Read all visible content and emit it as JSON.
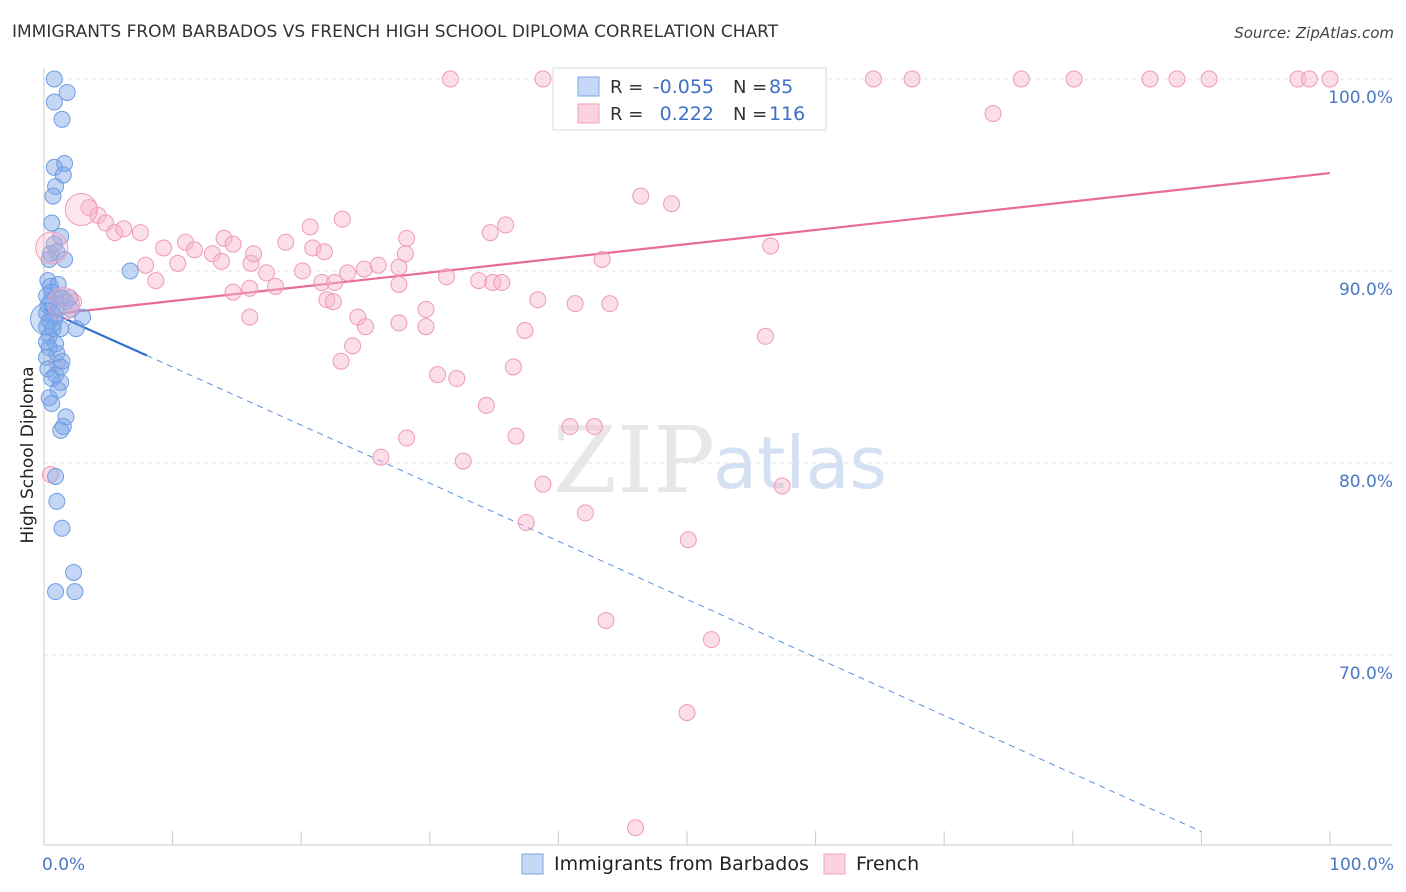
{
  "title": "IMMIGRANTS FROM BARBADOS VS FRENCH HIGH SCHOOL DIPLOMA CORRELATION CHART",
  "source": "Source: ZipAtlas.com",
  "watermark": {
    "zip": "ZIP",
    "atlas": "atlas"
  },
  "chart_data": {
    "type": "scatter",
    "title": "IMMIGRANTS FROM BARBADOS VS FRENCH HIGH SCHOOL DIPLOMA CORRELATION CHART",
    "xlabel": "",
    "ylabel": "High School Diploma",
    "xlim": [
      0,
      100
    ],
    "ylim": [
      60.5,
      101.5
    ],
    "x_tick_labels": [
      "0.0%",
      "100.0%"
    ],
    "y_ticks": [
      70,
      80,
      90,
      100
    ],
    "y_tick_labels": [
      "70.0%",
      "80.0%",
      "90.0%",
      "100.0%"
    ],
    "legend": [
      {
        "name": "Immigrants from Barbados",
        "color": "#7aa6e8",
        "R_label": "R = ",
        "R": "-0.055",
        "N_label": "N = ",
        "N": "85"
      },
      {
        "name": "French",
        "color": "#f4a0b8",
        "R_label": "R = ",
        "R": "0.222",
        "N_label": "N = ",
        "N": "116"
      }
    ],
    "series": [
      {
        "name": "Immigrants from Barbados",
        "color": "#7aa6e8",
        "stroke": "#6f9de4",
        "trend": {
          "x": [
            0,
            8.0
          ],
          "y": [
            88.0,
            85.6
          ],
          "color": "#2f6fd0"
        },
        "trend_ext": {
          "x": [
            8.0,
            90.0
          ],
          "y": [
            85.6,
            60.8
          ],
          "color": "#5b8fe0"
        },
        "points": [
          [
            0.8,
            100
          ],
          [
            1.8,
            99.3
          ],
          [
            0.8,
            98.8
          ],
          [
            1.4,
            97.9
          ],
          [
            1.6,
            95.6
          ],
          [
            0.8,
            95.4
          ],
          [
            1.5,
            95.0
          ],
          [
            0.9,
            94.4
          ],
          [
            0.7,
            93.9
          ],
          [
            0.6,
            92.5
          ],
          [
            1.3,
            91.8
          ],
          [
            0.8,
            91.4
          ],
          [
            1.0,
            91.0
          ],
          [
            0.5,
            90.9
          ],
          [
            1.6,
            90.6
          ],
          [
            0.4,
            90.6
          ],
          [
            6.7,
            90.0
          ],
          [
            0.3,
            89.5
          ],
          [
            0.5,
            89.2
          ],
          [
            1.1,
            89.3
          ],
          [
            0.6,
            88.9
          ],
          [
            0.2,
            88.7
          ],
          [
            0.9,
            88.6
          ],
          [
            1.4,
            88.6
          ],
          [
            2.0,
            88.6
          ],
          [
            1.7,
            88.4
          ],
          [
            0.5,
            88.4
          ],
          [
            0.3,
            88.2
          ],
          [
            1.1,
            88.0
          ],
          [
            2.1,
            88.0
          ],
          [
            0.2,
            87.8
          ],
          [
            3.0,
            87.6
          ],
          [
            0.8,
            87.6
          ],
          [
            0.4,
            87.4
          ],
          [
            0.2,
            87.1
          ],
          [
            1.3,
            87.0
          ],
          [
            0.7,
            87.0
          ],
          [
            2.5,
            87.0
          ],
          [
            0.4,
            86.6
          ],
          [
            0.2,
            86.3
          ],
          [
            0.9,
            86.2
          ],
          [
            0.4,
            86.0
          ],
          [
            1.0,
            85.7
          ],
          [
            0.2,
            85.5
          ],
          [
            1.4,
            85.3
          ],
          [
            1.3,
            85.0
          ],
          [
            0.3,
            84.9
          ],
          [
            0.9,
            84.6
          ],
          [
            0.6,
            84.4
          ],
          [
            1.3,
            84.2
          ],
          [
            1.1,
            83.8
          ],
          [
            0.4,
            83.4
          ],
          [
            0.6,
            83.1
          ],
          [
            1.7,
            82.4
          ],
          [
            1.5,
            81.9
          ],
          [
            1.3,
            81.7
          ],
          [
            0.9,
            79.3
          ],
          [
            1.0,
            78.0
          ],
          [
            1.4,
            76.6
          ],
          [
            2.3,
            74.3
          ],
          [
            0.9,
            73.3
          ],
          [
            2.4,
            73.3
          ]
        ]
      },
      {
        "name": "French",
        "color": "#f7b5c9",
        "stroke": "#ef9ab4",
        "trend": {
          "x": [
            0,
            100
          ],
          "y": [
            87.7,
            95.1
          ],
          "color": "#e76d96"
        },
        "points": [
          [
            31.6,
            100
          ],
          [
            38.8,
            100
          ],
          [
            40.2,
            100
          ],
          [
            42.6,
            100
          ],
          [
            47.4,
            100
          ],
          [
            51.6,
            100
          ],
          [
            56.0,
            100
          ],
          [
            60.2,
            100
          ],
          [
            64.5,
            100
          ],
          [
            67.5,
            100
          ],
          [
            76.0,
            100
          ],
          [
            80.1,
            100
          ],
          [
            86.0,
            100
          ],
          [
            88.1,
            100
          ],
          [
            90.6,
            100
          ],
          [
            97.5,
            100
          ],
          [
            98.4,
            100
          ],
          [
            100,
            100
          ],
          [
            73.8,
            98.2
          ],
          [
            46.4,
            93.9
          ],
          [
            48.8,
            93.5
          ],
          [
            3.5,
            93.3
          ],
          [
            4.2,
            92.9
          ],
          [
            23.2,
            92.7
          ],
          [
            20.7,
            92.3
          ],
          [
            34.7,
            92.0
          ],
          [
            35.9,
            92.4
          ],
          [
            4.8,
            92.5
          ],
          [
            5.5,
            92.0
          ],
          [
            6.2,
            92.2
          ],
          [
            7.5,
            92.0
          ],
          [
            11.0,
            91.5
          ],
          [
            14.0,
            91.7
          ],
          [
            14.7,
            91.4
          ],
          [
            28.2,
            91.7
          ],
          [
            18.8,
            91.5
          ],
          [
            20.9,
            91.2
          ],
          [
            21.8,
            91.0
          ],
          [
            11.7,
            91.1
          ],
          [
            13.1,
            90.9
          ],
          [
            10.4,
            90.4
          ],
          [
            13.8,
            90.5
          ],
          [
            28.1,
            90.9
          ],
          [
            16.1,
            90.4
          ],
          [
            16.3,
            90.9
          ],
          [
            56.5,
            91.3
          ],
          [
            43.4,
            90.6
          ],
          [
            27.6,
            90.2
          ],
          [
            7.9,
            90.3
          ],
          [
            9.3,
            91.2
          ],
          [
            24.9,
            90.1
          ],
          [
            26.0,
            90.3
          ],
          [
            20.1,
            90.0
          ],
          [
            17.3,
            89.9
          ],
          [
            23.6,
            89.9
          ],
          [
            31.3,
            89.7
          ],
          [
            18.0,
            89.2
          ],
          [
            21.6,
            89.4
          ],
          [
            22.6,
            89.4
          ],
          [
            16.0,
            89.1
          ],
          [
            14.7,
            88.9
          ],
          [
            27.6,
            89.3
          ],
          [
            33.8,
            89.5
          ],
          [
            34.9,
            89.4
          ],
          [
            35.6,
            89.4
          ],
          [
            2.3,
            88.4
          ],
          [
            8.7,
            89.5
          ],
          [
            22.0,
            88.5
          ],
          [
            38.4,
            88.5
          ],
          [
            41.3,
            88.3
          ],
          [
            44.0,
            88.3
          ],
          [
            22.5,
            88.4
          ],
          [
            29.7,
            88.0
          ],
          [
            24.4,
            87.6
          ],
          [
            16.0,
            87.6
          ],
          [
            25.0,
            87.1
          ],
          [
            27.6,
            87.3
          ],
          [
            29.7,
            87.1
          ],
          [
            37.4,
            86.9
          ],
          [
            56.1,
            86.6
          ],
          [
            24.0,
            86.1
          ],
          [
            23.1,
            85.3
          ],
          [
            36.5,
            85.0
          ],
          [
            1.0,
            85.2
          ],
          [
            30.6,
            84.6
          ],
          [
            32.1,
            84.4
          ],
          [
            34.4,
            83.0
          ],
          [
            40.9,
            81.9
          ],
          [
            42.8,
            81.9
          ],
          [
            28.2,
            81.3
          ],
          [
            36.7,
            81.4
          ],
          [
            26.2,
            80.3
          ],
          [
            32.6,
            80.1
          ],
          [
            57.4,
            78.8
          ],
          [
            38.8,
            78.9
          ],
          [
            42.1,
            77.4
          ],
          [
            37.5,
            76.9
          ],
          [
            50.1,
            76.0
          ],
          [
            43.7,
            71.8
          ],
          [
            51.9,
            70.8
          ],
          [
            50.0,
            67.0
          ],
          [
            46.0,
            61.0
          ],
          [
            0.5,
            79.4
          ]
        ]
      }
    ],
    "large_points": [
      {
        "series": 1,
        "x": 0.6,
        "y": 91.2
      },
      {
        "series": 1,
        "x": 2.9,
        "y": 93.2
      },
      {
        "series": 1,
        "x": 1.5,
        "y": 88.3
      },
      {
        "series": 0,
        "x": 0.2,
        "y": 87.5
      }
    ]
  }
}
